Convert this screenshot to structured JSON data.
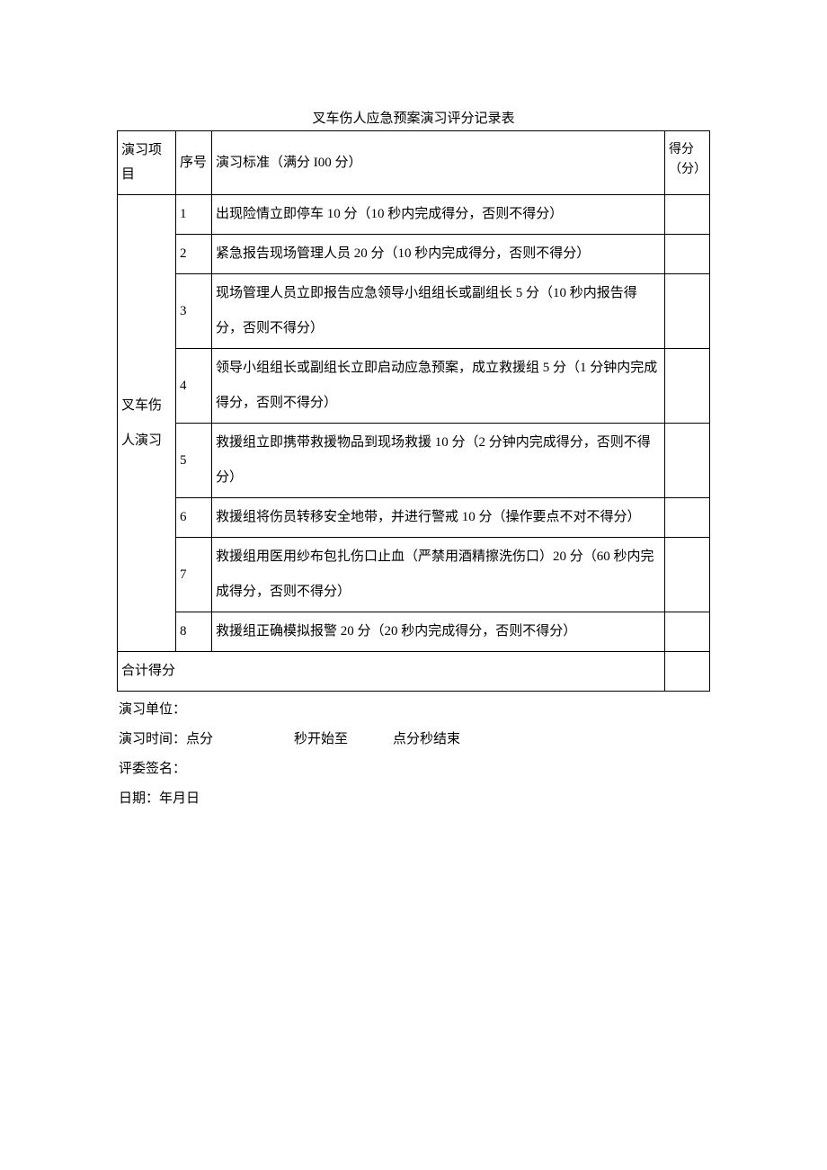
{
  "title": "叉车伤人应急预案演习评分记录表",
  "table": {
    "headers": {
      "project": "演习项目",
      "seq": "序号",
      "criteria": "演习标准（满分 I00 分）",
      "score": "得分（分）"
    },
    "projectLabel": "叉车伤人演习",
    "rows": [
      {
        "seq": "1",
        "criteria": "出现险情立即停车 10 分（10 秒内完成得分，否则不得分）",
        "score": ""
      },
      {
        "seq": "2",
        "criteria": "紧急报告现场管理人员 20 分（10 秒内完成得分，否则不得分）",
        "score": ""
      },
      {
        "seq": "3",
        "criteria": "现场管理人员立即报告应急领导小组组长或副组长 5 分（10 秒内报告得分，否则不得分）",
        "score": ""
      },
      {
        "seq": "4",
        "criteria": "领导小组组长或副组长立即启动应急预案，成立救援组 5 分（1 分钟内完成得分，否则不得分）",
        "score": ""
      },
      {
        "seq": "5",
        "criteria": "救援组立即携带救援物品到现场救援 10 分（2 分钟内完成得分，否则不得分）",
        "score": ""
      },
      {
        "seq": "6",
        "criteria": "救援组将伤员转移安全地带，并进行警戒 10 分（操作要点不对不得分）",
        "score": ""
      },
      {
        "seq": "7",
        "criteria": "救援组用医用纱布包扎伤口止血（严禁用酒精擦洗伤口）20 分（60 秒内完成得分，否则不得分）",
        "score": ""
      },
      {
        "seq": "8",
        "criteria": "救援组正确模拟报警 20 分（20 秒内完成得分，否则不得分）",
        "score": ""
      }
    ],
    "totalLabel": "合计得分",
    "totalValue": ""
  },
  "footer": {
    "unit": "演习单位：",
    "timePrefix": "演习时间：点分",
    "timeMid": "秒开始至",
    "timeEnd": "点分秒结束",
    "judge": "评委签名：",
    "date": "日期：年月日"
  },
  "colors": {
    "background": "#ffffff",
    "text": "#000000",
    "border": "#000000"
  }
}
